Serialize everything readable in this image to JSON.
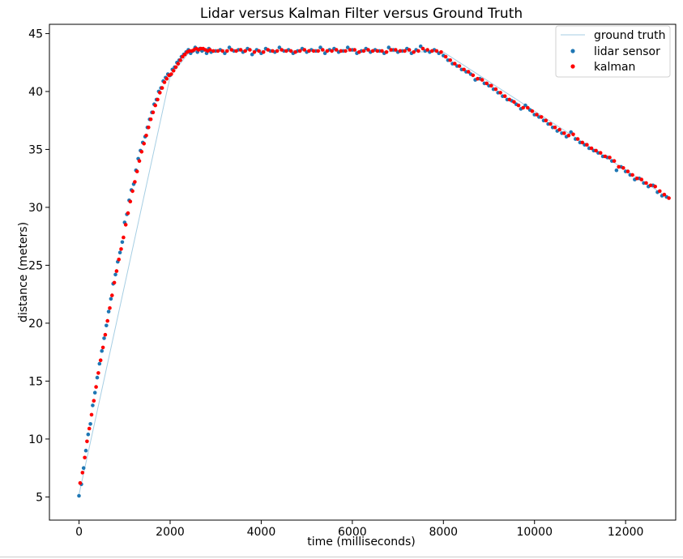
{
  "chart_data": {
    "type": "scatter",
    "title": "Lidar versus Kalman Filter versus Ground Truth",
    "xlabel": "time (milliseconds)",
    "ylabel": "distance (meters)",
    "xlim": [
      -650,
      13100
    ],
    "ylim": [
      3.0,
      45.8
    ],
    "x_ticks": [
      0,
      2000,
      4000,
      6000,
      8000,
      10000,
      12000
    ],
    "y_ticks": [
      5,
      10,
      15,
      20,
      25,
      30,
      35,
      40,
      45
    ],
    "grid": false,
    "legend_position": "top-right",
    "series": [
      {
        "name": "ground truth",
        "kind": "line",
        "color": "#a6cee3",
        "x": [
          0,
          2000,
          2400,
          2700,
          8000,
          12950
        ],
        "y": [
          5.2,
          41.3,
          43.3,
          43.6,
          43.4,
          30.8
        ]
      },
      {
        "name": "lidar sensor",
        "kind": "points",
        "color": "#1f77b4",
        "x": [
          0,
          50,
          100,
          150,
          200,
          250,
          300,
          350,
          400,
          450,
          500,
          550,
          600,
          650,
          700,
          750,
          800,
          850,
          900,
          950,
          1000,
          1050,
          1100,
          1150,
          1200,
          1250,
          1300,
          1350,
          1400,
          1450,
          1500,
          1550,
          1600,
          1650,
          1700,
          1750,
          1800,
          1850,
          1900,
          1950,
          2000,
          2050,
          2100,
          2150,
          2200,
          2250,
          2300,
          2350,
          2400,
          2450,
          2500,
          2550,
          2600,
          2650,
          2700,
          2750,
          2800,
          2850,
          2900,
          3000,
          3100,
          3200,
          3300,
          3400,
          3500,
          3600,
          3700,
          3800,
          3900,
          4000,
          4100,
          4200,
          4300,
          4400,
          4500,
          4600,
          4700,
          4800,
          4900,
          5000,
          5100,
          5200,
          5300,
          5400,
          5500,
          5600,
          5700,
          5800,
          5900,
          6000,
          6100,
          6200,
          6300,
          6400,
          6500,
          6600,
          6700,
          6800,
          6900,
          7000,
          7100,
          7200,
          7300,
          7400,
          7500,
          7600,
          7700,
          7800,
          7900,
          8000,
          8100,
          8200,
          8300,
          8400,
          8500,
          8600,
          8700,
          8800,
          8900,
          9000,
          9100,
          9200,
          9300,
          9400,
          9500,
          9600,
          9700,
          9800,
          9900,
          10000,
          10100,
          10200,
          10300,
          10400,
          10500,
          10600,
          10700,
          10800,
          10900,
          11000,
          11100,
          11200,
          11300,
          11400,
          11500,
          11600,
          11700,
          11800,
          11900,
          12000,
          12100,
          12200,
          12300,
          12400,
          12500,
          12600,
          12700,
          12800,
          12900
        ],
        "y": [
          5.1,
          6.1,
          7.5,
          9.0,
          10.4,
          11.3,
          12.9,
          14.0,
          15.3,
          16.5,
          17.6,
          18.7,
          19.8,
          21.0,
          22.1,
          23.4,
          24.2,
          25.3,
          26.1,
          27.0,
          28.7,
          29.4,
          30.6,
          31.5,
          32.0,
          33.2,
          34.2,
          34.9,
          35.6,
          36.1,
          36.9,
          37.6,
          38.2,
          38.9,
          39.3,
          40.0,
          40.3,
          40.9,
          41.2,
          41.5,
          41.4,
          41.9,
          42.1,
          42.5,
          42.7,
          43.0,
          43.2,
          43.4,
          43.6,
          43.3,
          43.5,
          43.8,
          43.4,
          43.7,
          43.5,
          43.6,
          43.3,
          43.7,
          43.4,
          43.5,
          43.6,
          43.3,
          43.8,
          43.5,
          43.6,
          43.4,
          43.7,
          43.2,
          43.6,
          43.3,
          43.7,
          43.5,
          43.4,
          43.8,
          43.5,
          43.6,
          43.3,
          43.5,
          43.7,
          43.4,
          43.6,
          43.5,
          43.8,
          43.3,
          43.6,
          43.7,
          43.4,
          43.5,
          43.8,
          43.6,
          43.3,
          43.5,
          43.7,
          43.4,
          43.6,
          43.5,
          43.3,
          43.8,
          43.6,
          43.4,
          43.5,
          43.7,
          43.3,
          43.6,
          43.9,
          43.5,
          43.4,
          43.6,
          43.3,
          43.1,
          42.7,
          42.4,
          42.2,
          41.9,
          41.7,
          41.5,
          41.0,
          41.1,
          40.7,
          40.5,
          40.2,
          39.9,
          39.6,
          39.3,
          39.2,
          38.9,
          38.5,
          38.8,
          38.4,
          38.0,
          37.8,
          37.5,
          37.2,
          36.9,
          36.6,
          36.4,
          36.1,
          36.5,
          35.9,
          35.6,
          35.4,
          35.1,
          34.9,
          34.7,
          34.4,
          34.3,
          34.0,
          33.2,
          33.5,
          33.1,
          32.8,
          32.4,
          32.5,
          32.1,
          31.8,
          31.9,
          31.3,
          31.0,
          30.9
        ]
      },
      {
        "name": "kalman",
        "kind": "points",
        "color": "#ff0000",
        "x": [
          25,
          75,
          125,
          175,
          225,
          275,
          325,
          375,
          425,
          475,
          525,
          575,
          625,
          675,
          725,
          775,
          825,
          875,
          925,
          975,
          1025,
          1075,
          1125,
          1175,
          1225,
          1275,
          1325,
          1375,
          1425,
          1475,
          1525,
          1575,
          1625,
          1675,
          1725,
          1775,
          1825,
          1875,
          1925,
          1975,
          2025,
          2075,
          2125,
          2175,
          2225,
          2275,
          2325,
          2375,
          2425,
          2475,
          2525,
          2575,
          2625,
          2675,
          2725,
          2775,
          2825,
          2875,
          2950,
          3050,
          3150,
          3250,
          3350,
          3450,
          3550,
          3650,
          3750,
          3850,
          3950,
          4050,
          4150,
          4250,
          4350,
          4450,
          4550,
          4650,
          4750,
          4850,
          4950,
          5050,
          5150,
          5250,
          5350,
          5450,
          5550,
          5650,
          5750,
          5850,
          5950,
          6050,
          6150,
          6250,
          6350,
          6450,
          6550,
          6650,
          6750,
          6850,
          6950,
          7050,
          7150,
          7250,
          7350,
          7450,
          7550,
          7650,
          7750,
          7850,
          7950,
          8050,
          8150,
          8250,
          8350,
          8450,
          8550,
          8650,
          8750,
          8850,
          8950,
          9050,
          9150,
          9250,
          9350,
          9450,
          9550,
          9650,
          9750,
          9850,
          9950,
          10050,
          10150,
          10250,
          10350,
          10450,
          10550,
          10650,
          10750,
          10850,
          10950,
          11050,
          11150,
          11250,
          11350,
          11450,
          11550,
          11650,
          11750,
          11850,
          11950,
          12050,
          12150,
          12250,
          12350,
          12450,
          12550,
          12650,
          12750,
          12850,
          12950
        ],
        "y": [
          6.2,
          7.1,
          8.4,
          9.8,
          10.9,
          12.1,
          13.3,
          14.5,
          15.7,
          16.8,
          17.9,
          19.0,
          20.2,
          21.3,
          22.4,
          23.5,
          24.5,
          25.5,
          26.4,
          27.4,
          28.5,
          29.5,
          30.5,
          31.4,
          32.2,
          33.1,
          34.0,
          34.8,
          35.5,
          36.2,
          36.9,
          37.6,
          38.2,
          38.8,
          39.3,
          39.9,
          40.3,
          40.8,
          41.1,
          41.4,
          41.5,
          41.8,
          42.1,
          42.4,
          42.7,
          43.0,
          43.2,
          43.4,
          43.5,
          43.5,
          43.6,
          43.7,
          43.6,
          43.7,
          43.7,
          43.6,
          43.5,
          43.6,
          43.5,
          43.5,
          43.5,
          43.5,
          43.6,
          43.5,
          43.6,
          43.5,
          43.6,
          43.4,
          43.5,
          43.4,
          43.6,
          43.5,
          43.5,
          43.6,
          43.5,
          43.5,
          43.4,
          43.5,
          43.6,
          43.5,
          43.5,
          43.5,
          43.6,
          43.5,
          43.5,
          43.6,
          43.5,
          43.5,
          43.6,
          43.6,
          43.4,
          43.5,
          43.6,
          43.5,
          43.5,
          43.5,
          43.4,
          43.6,
          43.6,
          43.5,
          43.5,
          43.6,
          43.4,
          43.5,
          43.7,
          43.6,
          43.5,
          43.5,
          43.4,
          43.0,
          42.7,
          42.4,
          42.2,
          41.9,
          41.7,
          41.4,
          41.1,
          41.0,
          40.7,
          40.5,
          40.2,
          39.9,
          39.6,
          39.3,
          39.1,
          38.8,
          38.6,
          38.6,
          38.3,
          38.0,
          37.8,
          37.5,
          37.2,
          36.9,
          36.7,
          36.4,
          36.2,
          36.3,
          35.9,
          35.6,
          35.4,
          35.1,
          34.9,
          34.7,
          34.4,
          34.3,
          34.0,
          33.5,
          33.4,
          33.1,
          32.8,
          32.5,
          32.4,
          32.1,
          31.9,
          31.8,
          31.4,
          31.1,
          30.8
        ]
      }
    ]
  }
}
